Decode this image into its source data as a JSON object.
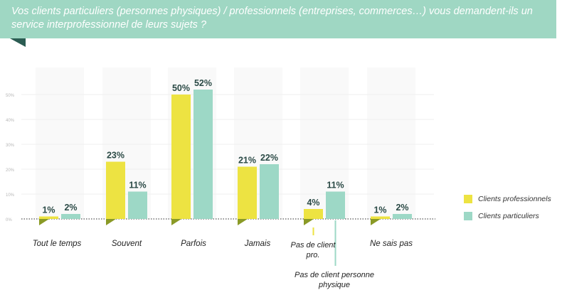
{
  "title": "Vos clients particuliers (personnes physiques) / professionnels (entreprises, commerces…) vous demandent-ils un service interprofessionnel de leurs sujets ?",
  "colors": {
    "banner": "#9fd7c3",
    "banner_fold": "#2b5c52",
    "clients_professionnels": "#ede342",
    "clients_particuliers": "#9dd8c6",
    "bar_base": "#8a9a26",
    "value_label": "#2b4a46",
    "tick_label": "#b8b8b8"
  },
  "legend": [
    {
      "label": "Clients professionnels",
      "color": "#ede342"
    },
    {
      "label": "Clients particuliers",
      "color": "#9dd8c6"
    }
  ],
  "chart_data": {
    "type": "bar",
    "title": "Vos clients particuliers (personnes physiques) / professionnels (entreprises, commerces…) vous demandent-ils un service interprofessionnel de leurs sujets ?",
    "categories": [
      "Tout le temps",
      "Souvent",
      "Parfois",
      "Jamais",
      "Pas de client pro. / Pas de client personne physique",
      "Ne sais pas"
    ],
    "series": [
      {
        "name": "Clients professionnels",
        "values": [
          1,
          23,
          50,
          21,
          4,
          1
        ],
        "labels": [
          "1%",
          "23%",
          "50%",
          "21%",
          "4%",
          "1%"
        ]
      },
      {
        "name": "Clients particuliers",
        "values": [
          2,
          11,
          52,
          22,
          11,
          2
        ],
        "labels": [
          "2%",
          "11%",
          "52%",
          "22%",
          "11%",
          "2%"
        ]
      }
    ],
    "category_labels": [
      "Tout le temps",
      "Souvent",
      "Parfois",
      "Jamais",
      "",
      "Ne sais pas"
    ],
    "split_labels": {
      "pro": "Pas de client pro.",
      "particulier": "Pas de client personne physique"
    },
    "yticks": [
      0,
      10,
      20,
      30,
      40,
      50
    ],
    "ytick_labels": [
      "0%",
      "10%",
      "20%",
      "30%",
      "40%",
      "50%"
    ],
    "ylim": [
      0,
      55
    ],
    "legend_position": "right",
    "grid": true
  }
}
